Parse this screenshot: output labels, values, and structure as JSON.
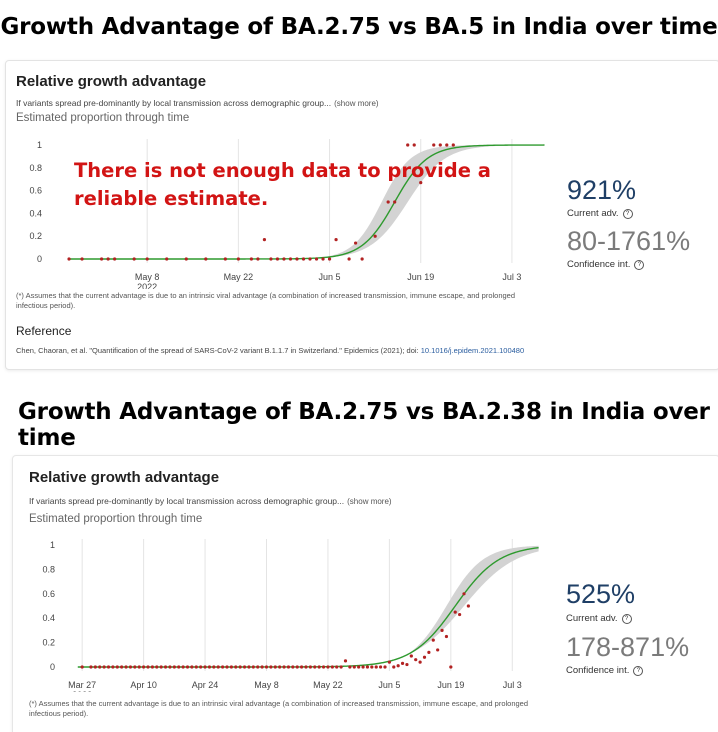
{
  "heading_1": "Growth Advantage of BA.2.75 vs BA.5 in India over time",
  "heading_2": "Growth Advantage of BA.2.75 vs BA.2.38 in India over time",
  "panel_1": {
    "title": "Relative growth advantage",
    "description": "If variants spread pre-dominantly by local transmission across demographic group...",
    "show_more": "(show more)",
    "subtitle": "Estimated proportion through time",
    "warning_line_1": "There is not enough data to provide a",
    "warning_line_2": "reliable estimate.",
    "current_adv_value": "921%",
    "current_adv_label": "Current adv.",
    "ci_value": "80-1761%",
    "ci_label": "Confidence int.",
    "footnote_line_1": "(*) Assumes that the current advantage is due to an intrinsic viral advantage (a combination of increased transmission, immune escape, and prolonged",
    "footnote_line_2": "infectious period).",
    "reference_title": "Reference",
    "reference_text": "Chen, Chaoran, et al. \"Quantification of the spread of SARS-CoV-2 variant B.1.1.7 in Switzerland.\" Epidemics (2021); doi: ",
    "reference_doi": "10.1016/j.epidem.2021.100480"
  },
  "panel_2": {
    "title": "Relative growth advantage",
    "description": "If variants spread pre-dominantly by local transmission across demographic group...",
    "show_more": "(show more)",
    "subtitle": "Estimated proportion through time",
    "current_adv_value": "525%",
    "current_adv_label": "Current adv.",
    "ci_value": "178-871%",
    "ci_label": "Confidence int.",
    "footnote_line_1": "(*) Assumes that the current advantage is due to an intrinsic viral advantage (a combination of increased transmission, immune escape, and prolonged",
    "footnote_line_2": "infectious period)."
  },
  "colors": {
    "fit_line": "#2e9a2e",
    "ci_band": "#d3d3d3",
    "points": "#b22222",
    "warning": "#d21414"
  },
  "chart_data": [
    {
      "type": "line",
      "x_unit": "date (2022)",
      "xlim": [
        "2022-04-24",
        "2022-07-09"
      ],
      "ylim": [
        0,
        1
      ],
      "yticks": [
        0,
        0.2,
        0.4,
        0.6,
        0.8,
        1
      ],
      "xticks": [
        {
          "date": "2022-05-08",
          "label": "May 8",
          "sublabel": "2022"
        },
        {
          "date": "2022-05-22",
          "label": "May 22",
          "sublabel": ""
        },
        {
          "date": "2022-06-05",
          "label": "Jun 5",
          "sublabel": ""
        },
        {
          "date": "2022-06-19",
          "label": "Jun 19",
          "sublabel": ""
        },
        {
          "date": "2022-07-03",
          "label": "Jul 3",
          "sublabel": ""
        }
      ],
      "grid": "vertical",
      "fit": {
        "midpoint": "2022-06-15",
        "rate_per_day": 0.4,
        "end": "2022-07-08"
      },
      "ci_band": {
        "lower_midpoint": "2022-06-17",
        "upper_midpoint": "2022-06-13",
        "lower_rate": 0.35,
        "upper_rate": 0.45
      },
      "points": [
        {
          "x": "2022-04-26",
          "y": 0
        },
        {
          "x": "2022-04-28",
          "y": 0
        },
        {
          "x": "2022-05-01",
          "y": 0
        },
        {
          "x": "2022-05-02",
          "y": 0
        },
        {
          "x": "2022-05-03",
          "y": 0
        },
        {
          "x": "2022-05-06",
          "y": 0
        },
        {
          "x": "2022-05-08",
          "y": 0
        },
        {
          "x": "2022-05-11",
          "y": 0
        },
        {
          "x": "2022-05-14",
          "y": 0
        },
        {
          "x": "2022-05-17",
          "y": 0
        },
        {
          "x": "2022-05-20",
          "y": 0
        },
        {
          "x": "2022-05-22",
          "y": 0
        },
        {
          "x": "2022-05-24",
          "y": 0
        },
        {
          "x": "2022-05-25",
          "y": 0
        },
        {
          "x": "2022-05-26",
          "y": 0.17
        },
        {
          "x": "2022-05-27",
          "y": 0
        },
        {
          "x": "2022-05-28",
          "y": 0
        },
        {
          "x": "2022-05-29",
          "y": 0
        },
        {
          "x": "2022-05-30",
          "y": 0
        },
        {
          "x": "2022-05-31",
          "y": 0
        },
        {
          "x": "2022-06-01",
          "y": 0
        },
        {
          "x": "2022-06-02",
          "y": 0
        },
        {
          "x": "2022-06-03",
          "y": 0
        },
        {
          "x": "2022-06-04",
          "y": 0
        },
        {
          "x": "2022-06-05",
          "y": 0
        },
        {
          "x": "2022-06-06",
          "y": 0.17
        },
        {
          "x": "2022-06-08",
          "y": 0
        },
        {
          "x": "2022-06-09",
          "y": 0.14
        },
        {
          "x": "2022-06-10",
          "y": 0
        },
        {
          "x": "2022-06-12",
          "y": 0.2
        },
        {
          "x": "2022-06-14",
          "y": 0.5
        },
        {
          "x": "2022-06-15",
          "y": 0.5
        },
        {
          "x": "2022-06-17",
          "y": 1
        },
        {
          "x": "2022-06-18",
          "y": 1
        },
        {
          "x": "2022-06-19",
          "y": 0.67
        },
        {
          "x": "2022-06-21",
          "y": 1
        },
        {
          "x": "2022-06-22",
          "y": 1
        },
        {
          "x": "2022-06-23",
          "y": 1
        },
        {
          "x": "2022-06-24",
          "y": 1
        }
      ]
    },
    {
      "type": "line",
      "x_unit": "date (2022)",
      "xlim": [
        "2022-03-24",
        "2022-07-10"
      ],
      "ylim": [
        0,
        1
      ],
      "yticks": [
        0,
        0.2,
        0.4,
        0.6,
        0.8,
        1
      ],
      "xticks": [
        {
          "date": "2022-03-27",
          "label": "Mar 27",
          "sublabel": "2022"
        },
        {
          "date": "2022-04-10",
          "label": "Apr 10",
          "sublabel": ""
        },
        {
          "date": "2022-04-24",
          "label": "Apr 24",
          "sublabel": ""
        },
        {
          "date": "2022-05-08",
          "label": "May 8",
          "sublabel": ""
        },
        {
          "date": "2022-05-22",
          "label": "May 22",
          "sublabel": ""
        },
        {
          "date": "2022-06-05",
          "label": "Jun 5",
          "sublabel": ""
        },
        {
          "date": "2022-06-19",
          "label": "Jun 19",
          "sublabel": ""
        },
        {
          "date": "2022-07-03",
          "label": "Jul 3",
          "sublabel": ""
        }
      ],
      "grid": "vertical",
      "fit": {
        "midpoint": "2022-06-20",
        "rate_per_day": 0.2,
        "end": "2022-07-09"
      },
      "ci_band": {
        "lower_midpoint": "2022-06-22",
        "upper_midpoint": "2022-06-18",
        "lower_rate": 0.17,
        "upper_rate": 0.24
      },
      "points": [
        {
          "x": "2022-03-27",
          "y": 0
        },
        {
          "x": "2022-03-29",
          "y": 0
        },
        {
          "x": "2022-03-30",
          "y": 0
        },
        {
          "x": "2022-03-31",
          "y": 0
        },
        {
          "x": "2022-04-01",
          "y": 0
        },
        {
          "x": "2022-04-02",
          "y": 0
        },
        {
          "x": "2022-04-03",
          "y": 0
        },
        {
          "x": "2022-04-04",
          "y": 0
        },
        {
          "x": "2022-04-05",
          "y": 0
        },
        {
          "x": "2022-04-06",
          "y": 0
        },
        {
          "x": "2022-04-07",
          "y": 0
        },
        {
          "x": "2022-04-08",
          "y": 0
        },
        {
          "x": "2022-04-09",
          "y": 0
        },
        {
          "x": "2022-04-10",
          "y": 0
        },
        {
          "x": "2022-04-11",
          "y": 0
        },
        {
          "x": "2022-04-12",
          "y": 0
        },
        {
          "x": "2022-04-13",
          "y": 0
        },
        {
          "x": "2022-04-14",
          "y": 0
        },
        {
          "x": "2022-04-15",
          "y": 0
        },
        {
          "x": "2022-04-16",
          "y": 0
        },
        {
          "x": "2022-04-17",
          "y": 0
        },
        {
          "x": "2022-04-18",
          "y": 0
        },
        {
          "x": "2022-04-19",
          "y": 0
        },
        {
          "x": "2022-04-20",
          "y": 0
        },
        {
          "x": "2022-04-21",
          "y": 0
        },
        {
          "x": "2022-04-22",
          "y": 0
        },
        {
          "x": "2022-04-23",
          "y": 0
        },
        {
          "x": "2022-04-24",
          "y": 0
        },
        {
          "x": "2022-04-25",
          "y": 0
        },
        {
          "x": "2022-04-26",
          "y": 0
        },
        {
          "x": "2022-04-27",
          "y": 0
        },
        {
          "x": "2022-04-28",
          "y": 0
        },
        {
          "x": "2022-04-29",
          "y": 0
        },
        {
          "x": "2022-04-30",
          "y": 0
        },
        {
          "x": "2022-05-01",
          "y": 0
        },
        {
          "x": "2022-05-02",
          "y": 0
        },
        {
          "x": "2022-05-03",
          "y": 0
        },
        {
          "x": "2022-05-04",
          "y": 0
        },
        {
          "x": "2022-05-05",
          "y": 0
        },
        {
          "x": "2022-05-06",
          "y": 0
        },
        {
          "x": "2022-05-07",
          "y": 0
        },
        {
          "x": "2022-05-08",
          "y": 0
        },
        {
          "x": "2022-05-09",
          "y": 0
        },
        {
          "x": "2022-05-10",
          "y": 0
        },
        {
          "x": "2022-05-11",
          "y": 0
        },
        {
          "x": "2022-05-12",
          "y": 0
        },
        {
          "x": "2022-05-13",
          "y": 0
        },
        {
          "x": "2022-05-14",
          "y": 0
        },
        {
          "x": "2022-05-15",
          "y": 0
        },
        {
          "x": "2022-05-16",
          "y": 0
        },
        {
          "x": "2022-05-17",
          "y": 0
        },
        {
          "x": "2022-05-18",
          "y": 0
        },
        {
          "x": "2022-05-19",
          "y": 0
        },
        {
          "x": "2022-05-20",
          "y": 0
        },
        {
          "x": "2022-05-21",
          "y": 0
        },
        {
          "x": "2022-05-22",
          "y": 0
        },
        {
          "x": "2022-05-23",
          "y": 0
        },
        {
          "x": "2022-05-24",
          "y": 0
        },
        {
          "x": "2022-05-25",
          "y": 0
        },
        {
          "x": "2022-05-26",
          "y": 0.05
        },
        {
          "x": "2022-05-27",
          "y": 0
        },
        {
          "x": "2022-05-28",
          "y": 0
        },
        {
          "x": "2022-05-29",
          "y": 0
        },
        {
          "x": "2022-05-30",
          "y": 0
        },
        {
          "x": "2022-05-31",
          "y": 0
        },
        {
          "x": "2022-06-01",
          "y": 0
        },
        {
          "x": "2022-06-02",
          "y": 0
        },
        {
          "x": "2022-06-03",
          "y": 0
        },
        {
          "x": "2022-06-04",
          "y": 0
        },
        {
          "x": "2022-06-05",
          "y": 0.04
        },
        {
          "x": "2022-06-06",
          "y": 0
        },
        {
          "x": "2022-06-07",
          "y": 0.01
        },
        {
          "x": "2022-06-08",
          "y": 0.03
        },
        {
          "x": "2022-06-09",
          "y": 0.02
        },
        {
          "x": "2022-06-10",
          "y": 0.09
        },
        {
          "x": "2022-06-11",
          "y": 0.06
        },
        {
          "x": "2022-06-12",
          "y": 0.04
        },
        {
          "x": "2022-06-13",
          "y": 0.08
        },
        {
          "x": "2022-06-14",
          "y": 0.12
        },
        {
          "x": "2022-06-15",
          "y": 0.22
        },
        {
          "x": "2022-06-16",
          "y": 0.14
        },
        {
          "x": "2022-06-17",
          "y": 0.3
        },
        {
          "x": "2022-06-18",
          "y": 0.25
        },
        {
          "x": "2022-06-19",
          "y": 0.0
        },
        {
          "x": "2022-06-20",
          "y": 0.45
        },
        {
          "x": "2022-06-21",
          "y": 0.43
        },
        {
          "x": "2022-06-22",
          "y": 0.6
        },
        {
          "x": "2022-06-23",
          "y": 0.5
        }
      ]
    }
  ]
}
